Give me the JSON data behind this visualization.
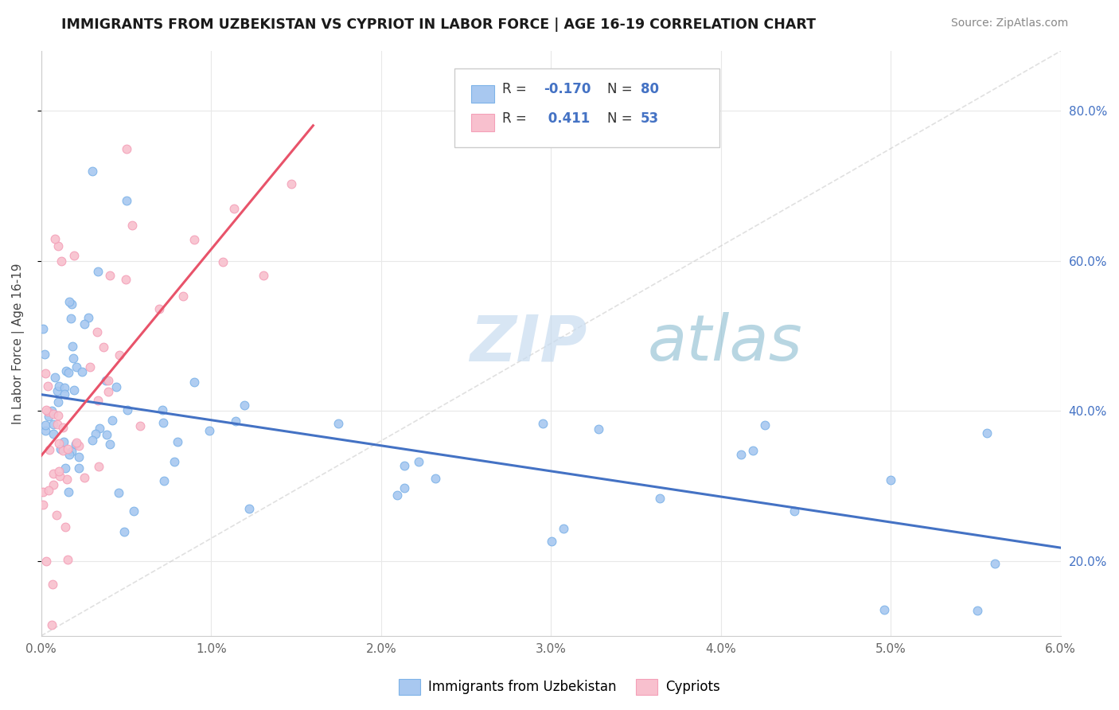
{
  "title": "IMMIGRANTS FROM UZBEKISTAN VS CYPRIOT IN LABOR FORCE | AGE 16-19 CORRELATION CHART",
  "source_text": "Source: ZipAtlas.com",
  "ylabel": "In Labor Force | Age 16-19",
  "xmin": 0.0,
  "xmax": 0.06,
  "ymin": 0.1,
  "ymax": 0.88,
  "y_ticks": [
    0.2,
    0.4,
    0.6,
    0.8
  ],
  "y_right_labels": [
    "20.0%",
    "40.0%",
    "60.0%",
    "80.0%"
  ],
  "x_ticks": [
    0.0,
    0.01,
    0.02,
    0.03,
    0.04,
    0.05,
    0.06
  ],
  "x_labels": [
    "0.0%",
    "1.0%",
    "2.0%",
    "3.0%",
    "4.0%",
    "5.0%",
    "6.0%"
  ],
  "uzbekistan_color": "#A8C8F0",
  "uzbekistan_edge_color": "#7EB3E8",
  "cypriot_color": "#F8C0CE",
  "cypriot_edge_color": "#F4A0B8",
  "uzbekistan_line_color": "#4472C4",
  "cypriot_line_color": "#E8536A",
  "diag_line_color": "#CCCCCC",
  "R_uzbekistan": -0.17,
  "N_uzbekistan": 80,
  "R_cypriot": 0.411,
  "N_cypriot": 53,
  "legend_label_1": "Immigrants from Uzbekistan",
  "legend_label_2": "Cypriots",
  "r_color": "#4472C4",
  "n_color": "#4472C4",
  "label_color": "#333333"
}
